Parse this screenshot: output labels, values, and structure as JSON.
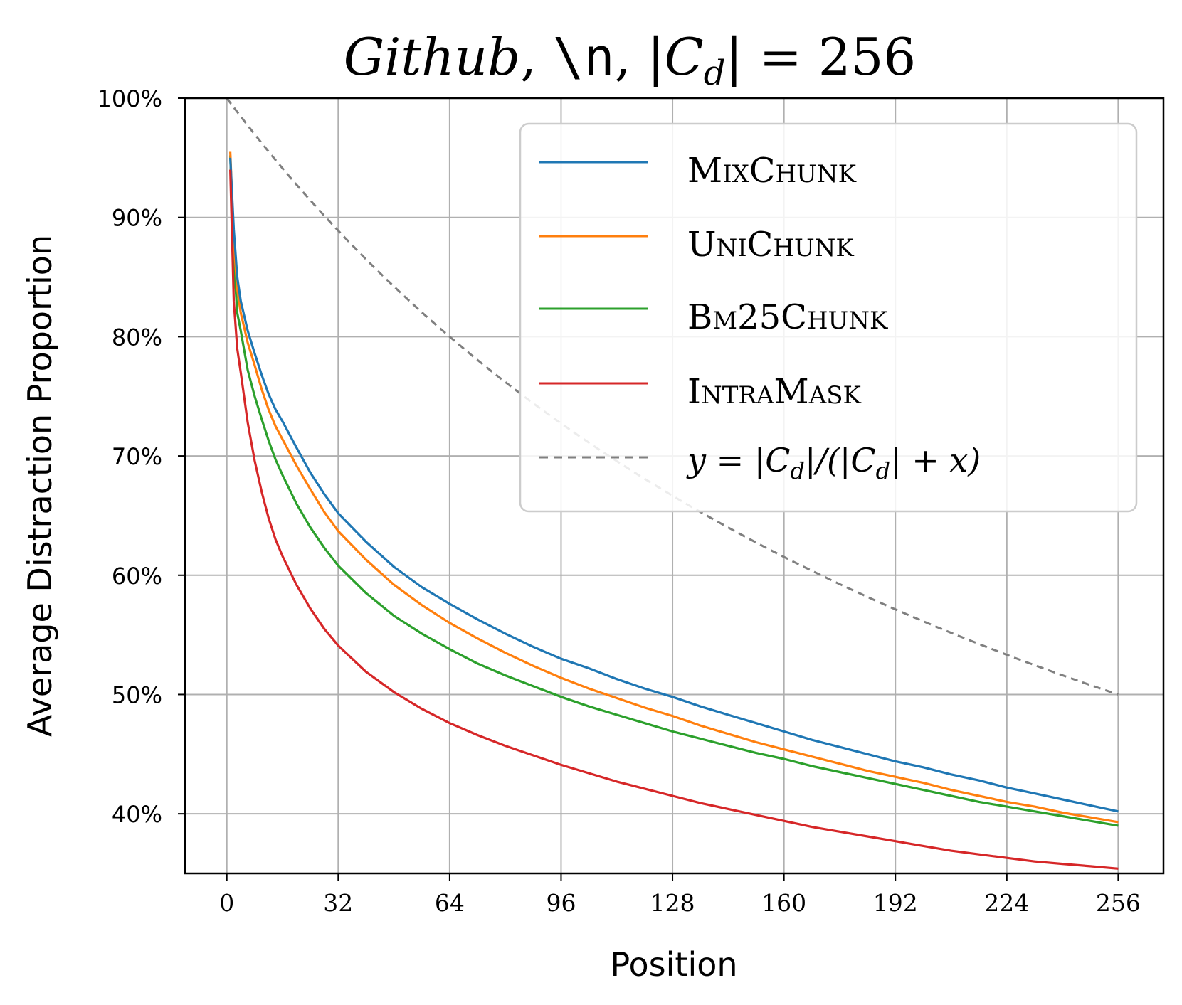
{
  "chart_data": {
    "type": "line",
    "title": {
      "dataset": "Github",
      "sep1": ", ",
      "delimiter": "\\n",
      "sep2": ", ",
      "expr": "|C",
      "expr_sub": "d",
      "expr_tail": "| = 256"
    },
    "xlabel": "Position",
    "ylabel": "Average Distraction Proportion",
    "xlim": [
      -12,
      269
    ],
    "ylim": [
      35,
      100
    ],
    "xticks": [
      0,
      32,
      64,
      96,
      128,
      160,
      192,
      224,
      256
    ],
    "yticks": [
      40,
      50,
      60,
      70,
      80,
      90,
      100
    ],
    "ytick_labels": [
      "40%",
      "50%",
      "60%",
      "70%",
      "80%",
      "90%",
      "100%"
    ],
    "grid": true,
    "legend_position": "top-right",
    "series": [
      {
        "name": "MixChunk",
        "color": "#1f77b4",
        "style": "solid",
        "x": [
          1,
          2,
          3,
          4,
          6,
          8,
          10,
          12,
          14,
          16,
          20,
          24,
          28,
          32,
          40,
          48,
          56,
          64,
          72,
          80,
          88,
          96,
          104,
          112,
          120,
          128,
          136,
          144,
          152,
          160,
          168,
          176,
          184,
          192,
          200,
          208,
          216,
          224,
          232,
          240,
          248,
          256
        ],
        "values": [
          95.0,
          89.0,
          85.0,
          83.0,
          80.5,
          78.6,
          76.8,
          75.2,
          73.9,
          72.9,
          70.7,
          68.6,
          66.8,
          65.2,
          62.8,
          60.7,
          59.0,
          57.6,
          56.3,
          55.1,
          54.0,
          53.0,
          52.2,
          51.3,
          50.5,
          49.8,
          49.0,
          48.3,
          47.6,
          46.9,
          46.2,
          45.6,
          45.0,
          44.4,
          43.9,
          43.3,
          42.8,
          42.2,
          41.7,
          41.2,
          40.7,
          40.2
        ]
      },
      {
        "name": "UniChunk",
        "color": "#ff7f0e",
        "style": "solid",
        "x": [
          1,
          2,
          3,
          4,
          6,
          8,
          10,
          12,
          14,
          16,
          20,
          24,
          28,
          32,
          40,
          48,
          56,
          64,
          72,
          80,
          88,
          96,
          104,
          112,
          120,
          128,
          136,
          144,
          152,
          160,
          168,
          176,
          184,
          192,
          200,
          208,
          216,
          224,
          232,
          240,
          248,
          256
        ],
        "values": [
          95.5,
          88.0,
          84.0,
          82.0,
          79.5,
          77.6,
          75.6,
          73.9,
          72.5,
          71.4,
          69.2,
          67.2,
          65.3,
          63.7,
          61.3,
          59.2,
          57.5,
          56.0,
          54.7,
          53.5,
          52.4,
          51.4,
          50.5,
          49.7,
          48.9,
          48.2,
          47.4,
          46.7,
          46.0,
          45.4,
          44.8,
          44.2,
          43.6,
          43.1,
          42.6,
          42.0,
          41.5,
          41.0,
          40.6,
          40.1,
          39.7,
          39.3
        ]
      },
      {
        "name": "Bm25Chunk",
        "color": "#2ca02c",
        "style": "solid",
        "x": [
          1,
          2,
          3,
          4,
          6,
          8,
          10,
          12,
          14,
          16,
          20,
          24,
          28,
          32,
          40,
          48,
          56,
          64,
          72,
          80,
          88,
          96,
          104,
          112,
          120,
          128,
          136,
          144,
          152,
          160,
          168,
          176,
          184,
          192,
          200,
          208,
          216,
          224,
          232,
          240,
          248,
          256
        ],
        "values": [
          95.2,
          86.5,
          82.0,
          80.5,
          77.2,
          75.0,
          73.1,
          71.3,
          69.7,
          68.4,
          66.0,
          64.0,
          62.3,
          60.8,
          58.5,
          56.6,
          55.1,
          53.8,
          52.6,
          51.6,
          50.7,
          49.8,
          49.0,
          48.3,
          47.6,
          46.9,
          46.3,
          45.7,
          45.1,
          44.6,
          44.0,
          43.5,
          43.0,
          42.5,
          42.0,
          41.5,
          41.0,
          40.6,
          40.2,
          39.8,
          39.4,
          39.0
        ]
      },
      {
        "name": "IntraMask",
        "color": "#d62728",
        "style": "solid",
        "x": [
          1,
          2,
          3,
          4,
          6,
          8,
          10,
          12,
          14,
          16,
          20,
          24,
          28,
          32,
          40,
          48,
          56,
          64,
          72,
          80,
          88,
          96,
          104,
          112,
          120,
          128,
          136,
          144,
          152,
          160,
          168,
          176,
          184,
          192,
          200,
          208,
          216,
          224,
          232,
          240,
          248,
          256
        ],
        "values": [
          94.0,
          83.0,
          79.0,
          77.0,
          72.8,
          69.6,
          67.0,
          64.8,
          63.0,
          61.6,
          59.2,
          57.2,
          55.5,
          54.1,
          51.9,
          50.2,
          48.8,
          47.6,
          46.6,
          45.7,
          44.9,
          44.1,
          43.4,
          42.7,
          42.1,
          41.5,
          40.9,
          40.4,
          39.9,
          39.4,
          38.9,
          38.5,
          38.1,
          37.7,
          37.3,
          36.9,
          36.6,
          36.3,
          36.0,
          35.8,
          35.6,
          35.4
        ]
      },
      {
        "name": "y = |Cd|/(|Cd| + x)",
        "legend_label": {
          "a": "y = |C",
          "a_sub": "d",
          "b": "|/(|C",
          "b_sub": "d",
          "c": "| + x)"
        },
        "color": "#808080",
        "style": "dashed",
        "formula_cd": 256
      }
    ]
  }
}
